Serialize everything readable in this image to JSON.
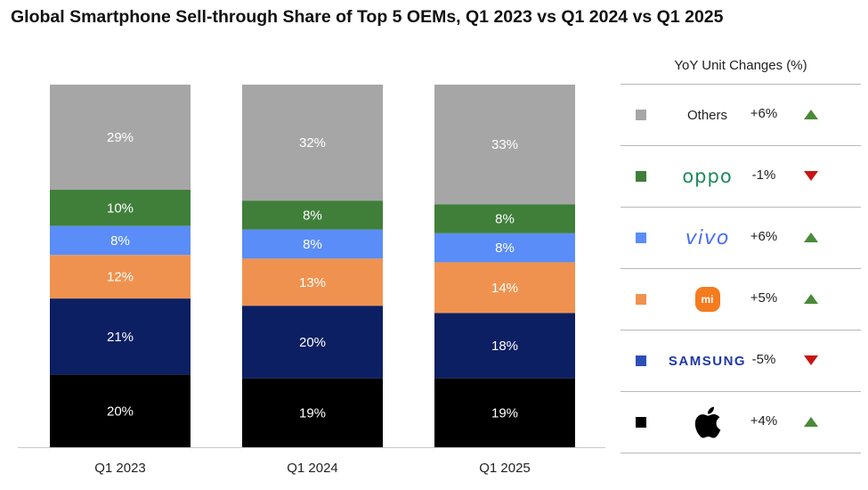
{
  "title": "Global Smartphone Sell-through Share of Top 5 OEMs, Q1 2023 vs Q1 2024 vs Q1 2025",
  "chart_data": {
    "type": "bar",
    "stacked": true,
    "title": "Global Smartphone Sell-through Share of Top 5 OEMs, Q1 2023 vs Q1 2024 vs Q1 2025",
    "categories": [
      "Q1 2023",
      "Q1 2024",
      "Q1 2025"
    ],
    "series": [
      {
        "key": "apple",
        "values": [
          20,
          19,
          19
        ],
        "labels": [
          "20%",
          "19%",
          "19%"
        ],
        "color": "#000000"
      },
      {
        "key": "samsung",
        "values": [
          21,
          20,
          18
        ],
        "labels": [
          "21%",
          "20%",
          "18%"
        ],
        "color": "#0d1f63"
      },
      {
        "key": "xiaomi",
        "values": [
          12,
          13,
          14
        ],
        "labels": [
          "12%",
          "13%",
          "14%"
        ],
        "color": "#f0924f"
      },
      {
        "key": "vivo",
        "values": [
          8,
          8,
          8
        ],
        "labels": [
          "8%",
          "8%",
          "8%"
        ],
        "color": "#5a8df7"
      },
      {
        "key": "oppo",
        "values": [
          10,
          8,
          8
        ],
        "labels": [
          "10%",
          "8%",
          "8%"
        ],
        "color": "#3f7f3a"
      },
      {
        "name": "Others",
        "values": [
          29,
          32,
          33
        ],
        "labels": [
          "29%",
          "32%",
          "33%"
        ],
        "color": "#a6a6a6"
      }
    ],
    "ylim": [
      0,
      100
    ],
    "grid": false,
    "legend": "right"
  },
  "legend": {
    "header": "YoY Unit Changes (%)",
    "rows": [
      {
        "brand": "Others",
        "brand_style": "text",
        "change": "+6%",
        "direction": "up",
        "color": "#a6a6a6"
      },
      {
        "brand": "oppo",
        "brand_style": "oppo",
        "change": "-1%",
        "direction": "down",
        "color": "#3f7f3a"
      },
      {
        "brand": "vivo",
        "brand_style": "vivo",
        "change": "+6%",
        "direction": "up",
        "color": "#5a8df7"
      },
      {
        "brand": "mi",
        "brand_style": "mi",
        "change": "+5%",
        "direction": "up",
        "color": "#f0924f"
      },
      {
        "brand": "SAMSUNG",
        "brand_style": "samsung",
        "change": "-5%",
        "direction": "down",
        "color": "#2d4eb5"
      },
      {
        "brand": "apple",
        "brand_style": "apple",
        "change": "+4%",
        "direction": "up",
        "color": "#000000"
      }
    ]
  }
}
